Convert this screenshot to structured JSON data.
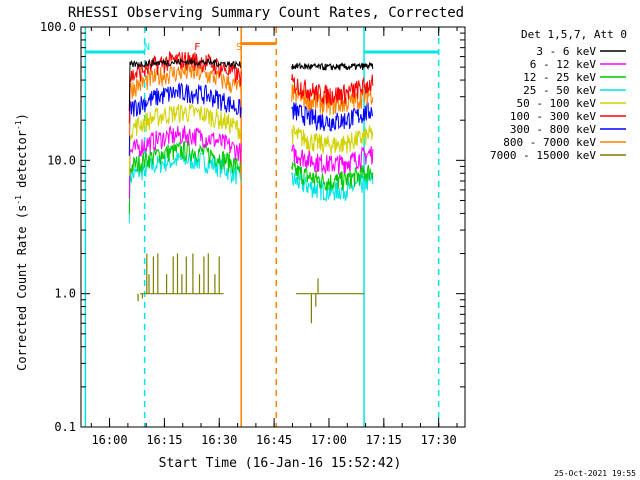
{
  "chart_data": {
    "type": "line",
    "title": "RHESSI Observing Summary Count Rates, Corrected",
    "xlabel": "Start Time (16-Jan-16 15:52:42)",
    "ylabel_main": "Corrected Count Rate (s",
    "ylabel_sup1": "-1",
    "ylabel_mid": " detector",
    "ylabel_sup2": "-1",
    "ylabel_end": ")",
    "yscale": "log",
    "ylim": [
      0.1,
      100
    ],
    "xlim_minutes": [
      15.87,
      17.62
    ],
    "x_tick_labels": [
      "16:00",
      "16:15",
      "16:30",
      "16:45",
      "17:00",
      "17:15",
      "17:30"
    ],
    "x_ticks_hours": [
      16.0,
      16.25,
      16.5,
      16.75,
      17.0,
      17.25,
      17.5
    ],
    "y_tick_labels": [
      "100.0",
      "10.0",
      "1.0",
      "0.1"
    ],
    "y_ticks": [
      100,
      10,
      1,
      0.1
    ],
    "legend_title": "Det 1,5,7, Att 0",
    "legend_position": "top-right",
    "series": [
      {
        "name": "3 - 6 keV",
        "color": "#000000",
        "level_a": 52,
        "level_b": 51
      },
      {
        "name": "6 - 12 keV",
        "color": "#ff00ff",
        "level_a": 11.5,
        "level_b": 11.5
      },
      {
        "name": "12 - 25 keV",
        "color": "#00c800",
        "level_a": 8.8,
        "level_b": 8.5
      },
      {
        "name": "25 - 50 keV",
        "color": "#00e6e6",
        "level_a": 7.5,
        "level_b": 7.2
      },
      {
        "name": "50 - 100 keV",
        "color": "#d2d200",
        "level_a": 17,
        "level_b": 16
      },
      {
        "name": "100 - 300 keV",
        "color": "#ff0000",
        "level_a": 42,
        "level_b": 38
      },
      {
        "name": "300 - 800 keV",
        "color": "#0000ff",
        "level_a": 24,
        "level_b": 24
      },
      {
        "name": "800 - 7000 keV",
        "color": "#ff8200",
        "level_a": 34,
        "level_b": 32
      },
      {
        "name": "7000 - 15000 keV",
        "color": "#7d7d00",
        "level_a": 1.0,
        "level_b": 1.0
      }
    ],
    "segments_hours": [
      [
        16.09,
        16.6
      ],
      [
        16.83,
        17.2
      ]
    ],
    "annotations": [
      {
        "label": "N",
        "color": "#00e6e6",
        "x_hours": 16.17
      },
      {
        "label": "F",
        "color": "#ff0000",
        "x_hours": 16.4
      },
      {
        "label": "S",
        "color": "#ff8200",
        "x_hours": 16.59
      }
    ],
    "vlines": [
      {
        "x_hours": 15.89,
        "color": "#00e6e6",
        "style": "solid"
      },
      {
        "x_hours": 16.16,
        "color": "#00e6e6",
        "style": "dashed"
      },
      {
        "x_hours": 16.6,
        "color": "#ff8200",
        "style": "solid"
      },
      {
        "x_hours": 16.76,
        "color": "#ff8200",
        "style": "dashed"
      },
      {
        "x_hours": 17.16,
        "color": "#00e6e6",
        "style": "solid"
      },
      {
        "x_hours": 17.5,
        "color": "#00e6e6",
        "style": "dashed"
      }
    ],
    "hbars": [
      {
        "x1_hours": 15.89,
        "x2_hours": 16.16,
        "y": 65,
        "color": "#00e6e6"
      },
      {
        "x1_hours": 16.6,
        "x2_hours": 16.76,
        "y": 75,
        "color": "#ff8200"
      },
      {
        "x1_hours": 17.16,
        "x2_hours": 17.5,
        "y": 65,
        "color": "#00e6e6"
      }
    ]
  },
  "footer": {
    "date_stamp": "25-Oct-2021 19:55"
  }
}
